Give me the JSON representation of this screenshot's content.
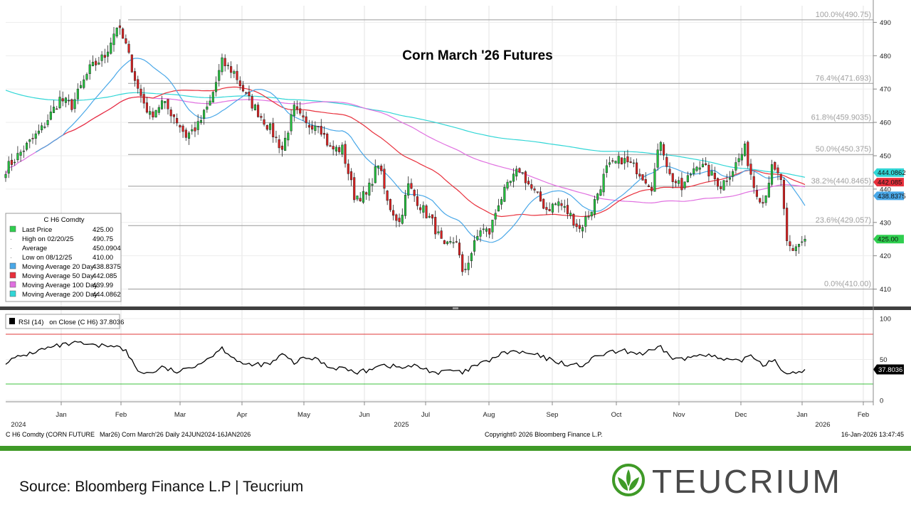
{
  "chart_data": {
    "type": "candlestick",
    "title": "Corn March '26 Futures",
    "price_axis": {
      "min": 405,
      "max": 495,
      "ticks": [
        410,
        420,
        430,
        440,
        450,
        460,
        470,
        480,
        490
      ]
    },
    "rsi_axis": {
      "min": 0,
      "max": 100,
      "ticks": [
        0,
        50,
        100
      ],
      "overbought": 80,
      "oversold": 20
    },
    "x_axis": {
      "months": [
        "Jan",
        "Feb",
        "Mar",
        "Apr",
        "May",
        "Jun",
        "Jul",
        "Aug",
        "Sep",
        "Oct",
        "Nov",
        "Dec",
        "Jan",
        "Feb"
      ],
      "year_labels": [
        "2024",
        "2025",
        "2026"
      ]
    },
    "fib_levels": [
      {
        "label": "100.0%(490.75)",
        "value": 490.75
      },
      {
        "label": "76.4%(471.693)",
        "value": 471.693
      },
      {
        "label": "61.8%(459.9035)",
        "value": 459.9035
      },
      {
        "label": "50.0%(450.375)",
        "value": 450.375
      },
      {
        "label": "38.2%(440.8465)",
        "value": 440.8465
      },
      {
        "label": "23.6%(429.057)",
        "value": 429.057
      },
      {
        "label": "0.0%(410.00)",
        "value": 410.0
      }
    ],
    "price_tags": [
      {
        "label": "444.0862",
        "value": 444.0862,
        "color": "#31d6d6"
      },
      {
        "label": "442.085",
        "value": 442.085,
        "color": "#e8303c"
      },
      {
        "label": "438.8375",
        "value": 438.8375,
        "color": "#4aa8e8"
      },
      {
        "label": "425.00",
        "value": 425.0,
        "color": "#2fcf4f"
      }
    ],
    "rsi_tag": "37.8036",
    "legend": {
      "header": "C H6 Comdty",
      "rows": [
        {
          "label": "Last Price",
          "value": "425.00",
          "color": "#2fcf4f"
        },
        {
          "label": "High on 02/20/25",
          "value": "490.75",
          "color": ""
        },
        {
          "label": "Average",
          "value": "450.0904",
          "color": ""
        },
        {
          "label": "Low on 08/12/25",
          "value": "410.00",
          "color": ""
        },
        {
          "label": "Moving Average 20 Day",
          "value": "438.8375",
          "color": "#4aa8e8"
        },
        {
          "label": "Moving Average 50 Day",
          "value": "442.085",
          "color": "#e8303c"
        },
        {
          "label": "Moving Average 100 Day",
          "value": "439.99",
          "color": "#e070e0"
        },
        {
          "label": "Moving Average 200 Day",
          "value": "444.0862",
          "color": "#31d6d6"
        }
      ]
    },
    "rsi_legend": "RSI (14)   on Close (C H6) 37.8036",
    "close_anchors": [
      [
        0,
        446
      ],
      [
        6,
        452
      ],
      [
        12,
        458
      ],
      [
        18,
        467
      ],
      [
        22,
        465
      ],
      [
        28,
        476
      ],
      [
        33,
        480
      ],
      [
        37,
        489
      ],
      [
        40,
        483
      ],
      [
        44,
        470
      ],
      [
        48,
        462
      ],
      [
        52,
        466
      ],
      [
        56,
        462
      ],
      [
        60,
        456
      ],
      [
        64,
        459
      ],
      [
        68,
        466
      ],
      [
        72,
        478
      ],
      [
        76,
        475
      ],
      [
        80,
        468
      ],
      [
        84,
        463
      ],
      [
        88,
        458
      ],
      [
        92,
        452
      ],
      [
        96,
        464
      ],
      [
        100,
        459
      ],
      [
        104,
        460
      ],
      [
        108,
        452
      ],
      [
        112,
        452
      ],
      [
        116,
        438
      ],
      [
        120,
        438
      ],
      [
        124,
        448
      ],
      [
        127,
        436
      ],
      [
        131,
        430
      ],
      [
        134,
        441
      ],
      [
        138,
        435
      ],
      [
        142,
        430
      ],
      [
        146,
        422
      ],
      [
        150,
        425
      ],
      [
        152,
        414
      ],
      [
        155,
        421
      ],
      [
        158,
        428
      ],
      [
        161,
        427
      ],
      [
        164,
        436
      ],
      [
        168,
        442
      ],
      [
        171,
        446
      ],
      [
        175,
        440
      ],
      [
        180,
        434
      ],
      [
        184,
        436
      ],
      [
        188,
        432
      ],
      [
        191,
        428
      ],
      [
        195,
        434
      ],
      [
        200,
        446
      ],
      [
        205,
        449
      ],
      [
        210,
        446
      ],
      [
        215,
        441
      ],
      [
        218,
        455
      ],
      [
        221,
        444
      ],
      [
        225,
        440
      ],
      [
        230,
        448
      ],
      [
        234,
        445
      ],
      [
        238,
        441
      ],
      [
        242,
        446
      ],
      [
        246,
        452
      ],
      [
        249,
        441
      ],
      [
        252,
        436
      ],
      [
        255,
        446
      ],
      [
        258,
        443
      ],
      [
        260,
        423
      ],
      [
        262,
        421
      ],
      [
        264,
        424
      ],
      [
        266,
        425
      ]
    ],
    "rsi_anchors": [
      [
        0,
        47
      ],
      [
        6,
        55
      ],
      [
        12,
        62
      ],
      [
        18,
        67
      ],
      [
        24,
        70
      ],
      [
        30,
        66
      ],
      [
        36,
        68
      ],
      [
        40,
        60
      ],
      [
        44,
        36
      ],
      [
        48,
        33
      ],
      [
        52,
        40
      ],
      [
        58,
        34
      ],
      [
        62,
        42
      ],
      [
        66,
        48
      ],
      [
        72,
        64
      ],
      [
        76,
        52
      ],
      [
        80,
        42
      ],
      [
        84,
        44
      ],
      [
        88,
        44
      ],
      [
        92,
        56
      ],
      [
        96,
        46
      ],
      [
        100,
        52
      ],
      [
        104,
        50
      ],
      [
        108,
        40
      ],
      [
        112,
        40
      ],
      [
        116,
        34
      ],
      [
        120,
        36
      ],
      [
        124,
        44
      ],
      [
        128,
        42
      ],
      [
        132,
        40
      ],
      [
        136,
        42
      ],
      [
        140,
        38
      ],
      [
        144,
        33
      ],
      [
        148,
        37
      ],
      [
        152,
        33
      ],
      [
        156,
        42
      ],
      [
        160,
        47
      ],
      [
        164,
        55
      ],
      [
        168,
        60
      ],
      [
        172,
        58
      ],
      [
        176,
        56
      ],
      [
        180,
        51
      ],
      [
        184,
        47
      ],
      [
        188,
        43
      ],
      [
        192,
        43
      ],
      [
        196,
        52
      ],
      [
        200,
        58
      ],
      [
        206,
        60
      ],
      [
        212,
        57
      ],
      [
        218,
        64
      ],
      [
        222,
        52
      ],
      [
        226,
        50
      ],
      [
        232,
        58
      ],
      [
        238,
        50
      ],
      [
        244,
        47
      ],
      [
        248,
        56
      ],
      [
        252,
        44
      ],
      [
        256,
        50
      ],
      [
        260,
        30
      ],
      [
        264,
        35
      ],
      [
        266,
        38
      ]
    ]
  },
  "header": {
    "footer_left": "C H6 Comdty (CORN FUTURE",
    "footer_mid": "Mar26) Corn March'26 Daily 24JUN2024-16JAN2026",
    "copyright": "Copyright© 2026 Bloomberg Finance L.P.",
    "timestamp": "16-Jan-2026 13:47:45"
  },
  "source_text": "Source: Bloomberg Finance L.P | Teucrium",
  "logo_text": "TEUCRIUM",
  "colors": {
    "up": "#22c63e",
    "down": "#e02020",
    "ma20": "#4aa8e8",
    "ma50": "#e8303c",
    "ma100": "#e070e0",
    "ma200": "#31d6d6",
    "brand": "#3f9a27",
    "logo_text": "#4a4a4a"
  }
}
